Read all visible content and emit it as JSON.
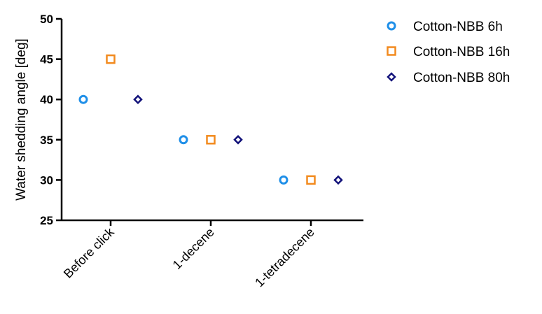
{
  "chart_data": {
    "type": "scatter",
    "title": "",
    "xlabel": "",
    "ylabel": "Water shedding angle [deg]",
    "ylim": [
      25,
      50
    ],
    "yticks": [
      25,
      30,
      35,
      40,
      45,
      50
    ],
    "categories": [
      "Before click",
      "1-decene",
      "1-tetradecene"
    ],
    "grid": false,
    "legend_position": "top-right",
    "series": [
      {
        "name": "Cotton-NBB 6h",
        "values": [
          40,
          35,
          30
        ],
        "marker": "circle",
        "color": "#1f8fe8"
      },
      {
        "name": "Cotton-NBB 16h",
        "values": [
          45,
          35,
          30
        ],
        "marker": "square",
        "color": "#f28a1e"
      },
      {
        "name": "Cotton-NBB 80h",
        "values": [
          40,
          35,
          30
        ],
        "marker": "diamond",
        "color": "#12127a"
      }
    ]
  }
}
